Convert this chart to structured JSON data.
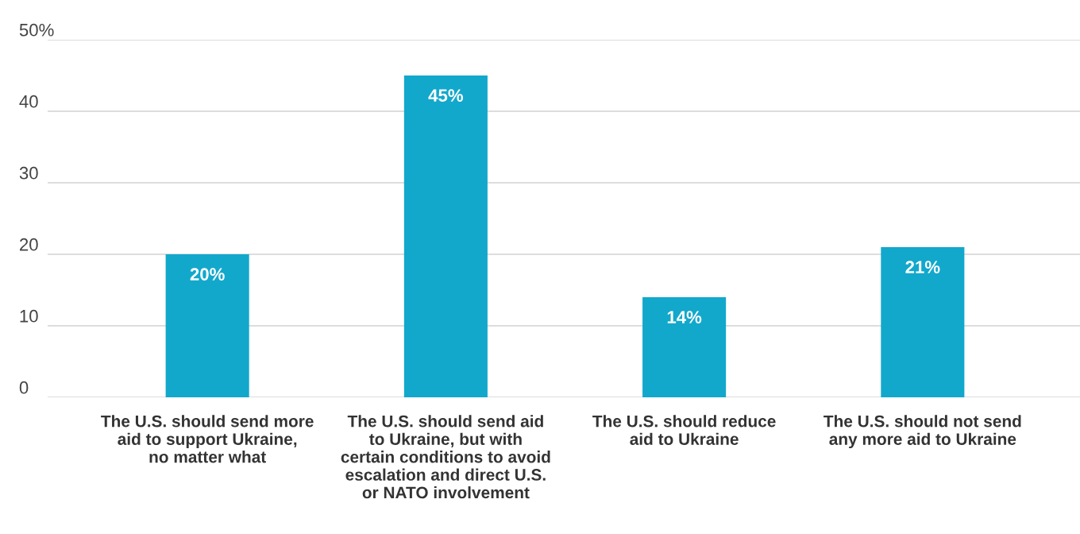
{
  "chart_data": {
    "type": "bar",
    "categories": [
      "The U.S. should send more\naid to support Ukraine,\nno matter what",
      "The U.S. should send aid\nto Ukraine, but with\ncertain conditions to avoid\nescalation and direct U.S.\nor NATO involvement",
      "The U.S. should reduce\naid to Ukraine",
      "The U.S. should not send\nany more aid to Ukraine"
    ],
    "values": [
      20,
      45,
      14,
      21
    ],
    "value_labels": [
      "20%",
      "45%",
      "14%",
      "21%"
    ],
    "color": "#12a8cc",
    "ylim": [
      0,
      50
    ],
    "yticks": [
      0,
      10,
      20,
      30,
      40,
      {
        "value": 50,
        "label": "50%"
      }
    ],
    "grid": "y"
  }
}
